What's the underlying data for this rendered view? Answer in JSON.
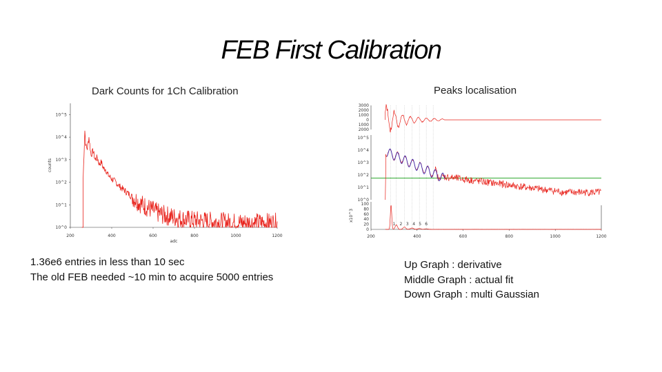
{
  "slide": {
    "title": "FEB First Calibration",
    "left_caption": "Dark Counts for 1Ch Calibration",
    "right_caption": "Peaks localisation",
    "left_notes": [
      "1.36e6 entries in less than 10 sec",
      "The old FEB needed ~10 min to acquire 5000 entries"
    ],
    "right_notes": [
      "Up Graph : derivative",
      "Middle Graph : actual fit",
      "Down Graph : multi Gaussian"
    ]
  },
  "colors": {
    "histogram": "#e8211a",
    "fit": "#3a2bb0",
    "baseline": "#2fa82f",
    "grid": "#bfbfbf"
  },
  "chart_data": [
    {
      "type": "line",
      "title": "",
      "xlabel": "adc",
      "ylabel": "counts",
      "x_ticks": [
        "200",
        "400",
        "600",
        "800",
        "1000",
        "1200"
      ],
      "y_ticks": [
        "10^0",
        "10^1",
        "10^2",
        "10^3",
        "10^4",
        "10^5"
      ],
      "xlim": [
        200,
        1200
      ],
      "ylim_log10": [
        0,
        5.5
      ],
      "y_scale": "log",
      "series": [
        {
          "values_log10": [
            [
              260,
              0
            ],
            [
              262,
              2.2
            ],
            [
              270,
              4.3
            ],
            [
              275,
              3.6
            ],
            [
              282,
              3.5
            ],
            [
              290,
              4.0
            ],
            [
              300,
              3.2
            ],
            [
              310,
              3.4
            ],
            [
              320,
              3.0
            ],
            [
              330,
              3.1
            ],
            [
              340,
              2.8
            ],
            [
              350,
              2.9
            ],
            [
              360,
              2.6
            ],
            [
              370,
              2.6
            ],
            [
              380,
              2.35
            ],
            [
              400,
              2.15
            ],
            [
              420,
              2.0
            ],
            [
              440,
              1.8
            ],
            [
              460,
              1.65
            ],
            [
              480,
              1.5
            ],
            [
              500,
              1.35
            ],
            [
              520,
              1.2
            ],
            [
              540,
              1.05
            ],
            [
              560,
              0.95
            ],
            [
              580,
              0.85
            ],
            [
              600,
              0.75
            ],
            [
              620,
              0.65
            ],
            [
              650,
              0.55
            ],
            [
              700,
              0.45
            ],
            [
              750,
              0.35
            ],
            [
              800,
              0.3
            ],
            [
              900,
              0.25
            ],
            [
              1000,
              0.2
            ],
            [
              1100,
              0.2
            ],
            [
              1200,
              0.2
            ]
          ]
        }
      ]
    },
    {
      "type": "line",
      "title": "",
      "xlabel": "",
      "ylabel": "",
      "x_ticks": [
        "200",
        "400",
        "600",
        "800",
        "1000",
        "1200"
      ],
      "xlim": [
        200,
        1200
      ],
      "panels": {
        "top": {
          "y_ticks": [
            "1000",
            "0",
            "1000",
            "2000",
            "3000"
          ],
          "series_name": "derivative"
        },
        "middle": {
          "y_ticks": [
            "10^0",
            "10^1",
            "10^2",
            "10^3",
            "10^4",
            "10^5"
          ],
          "series_name": "actual fit"
        },
        "bottom": {
          "y_ticks": [
            "0",
            "20",
            "40",
            "60",
            "80",
            "100"
          ],
          "y_exp": "x10^3",
          "peak_labels": [
            "1",
            "2",
            "3",
            "4",
            "5",
            "6"
          ],
          "series_name": "multi Gaussian"
        }
      },
      "peak_positions": [
        285,
        310,
        345,
        378,
        410,
        440,
        470
      ],
      "baseline_log10": 1.75
    }
  ]
}
